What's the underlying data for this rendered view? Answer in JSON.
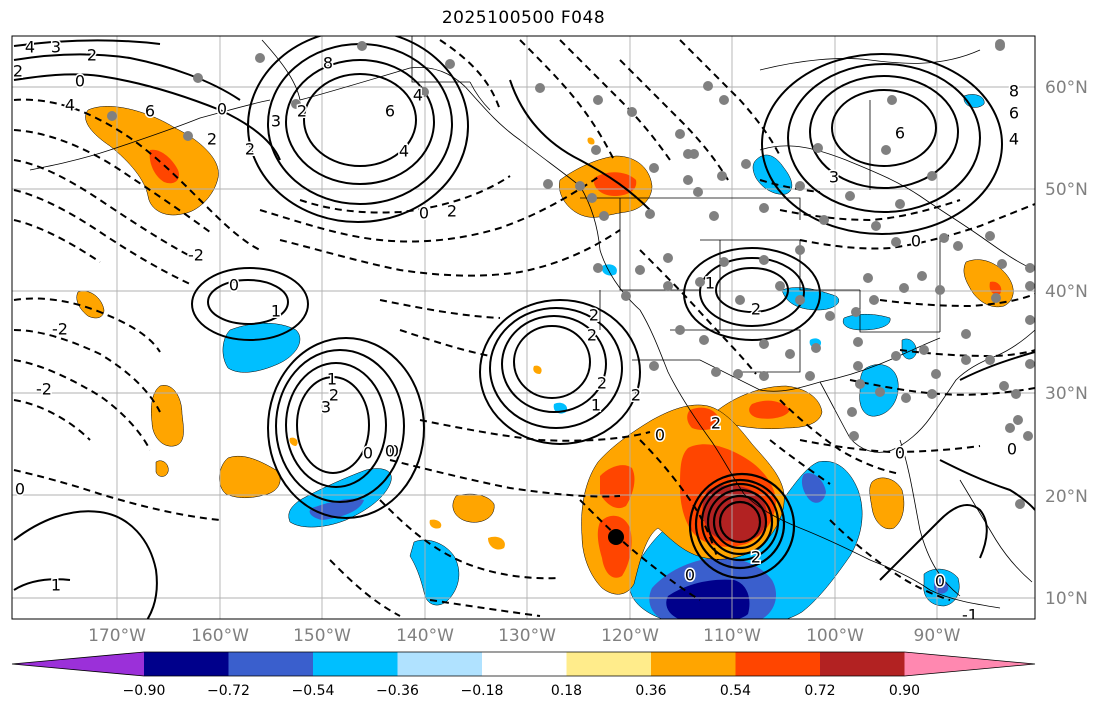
{
  "title": "2025100500 F048",
  "map": {
    "longitude_labels": [
      "170°W",
      "160°W",
      "150°W",
      "140°W",
      "130°W",
      "120°W",
      "110°W",
      "100°W",
      "90°W"
    ],
    "latitude_labels": [
      "60°N",
      "50°N",
      "40°N",
      "30°N",
      "20°N",
      "10°N"
    ],
    "contour_labels": [
      {
        "text": "4"
      },
      {
        "text": "3"
      },
      {
        "text": "2"
      },
      {
        "text": "2"
      },
      {
        "text": "0"
      },
      {
        "text": "4"
      },
      {
        "text": "6"
      },
      {
        "text": "2"
      },
      {
        "text": "2"
      },
      {
        "text": "0"
      },
      {
        "text": "-2"
      },
      {
        "text": "-2"
      },
      {
        "text": "-2"
      },
      {
        "text": "0"
      },
      {
        "text": "1"
      },
      {
        "text": "3"
      },
      {
        "text": "8"
      },
      {
        "text": "6"
      },
      {
        "text": "4"
      },
      {
        "text": "2"
      },
      {
        "text": "0"
      },
      {
        "text": "2"
      },
      {
        "text": "0"
      },
      {
        "text": "1"
      },
      {
        "text": "2"
      },
      {
        "text": "2"
      },
      {
        "text": "2"
      },
      {
        "text": "2"
      },
      {
        "text": "0"
      },
      {
        "text": "0"
      },
      {
        "text": "3"
      },
      {
        "text": "4"
      },
      {
        "text": "1"
      },
      {
        "text": "2"
      },
      {
        "text": "2"
      },
      {
        "text": "0"
      },
      {
        "text": "2"
      },
      {
        "text": "0"
      },
      {
        "text": "8"
      },
      {
        "text": "6"
      },
      {
        "text": "4"
      },
      {
        "text": "6"
      },
      {
        "text": "3"
      },
      {
        "text": "0"
      },
      {
        "text": "0"
      },
      {
        "text": "2"
      },
      {
        "text": "-1"
      },
      {
        "text": "0"
      },
      {
        "text": "0"
      },
      {
        "text": "1"
      },
      {
        "text": "0"
      },
      {
        "text": "1"
      }
    ]
  },
  "colorbar": {
    "colors": [
      "#9b30d9",
      "#00008b",
      "#3a5fcd",
      "#00bfff",
      "#b0e2ff",
      "#ffffff",
      "#ffec8b",
      "#ffa500",
      "#ff4500",
      "#b22222",
      "#ff88b0"
    ],
    "ticks": [
      "−0.90",
      "−0.72",
      "−0.54",
      "−0.36",
      "−0.18",
      "0.18",
      "0.36",
      "0.54",
      "0.72",
      "0.90"
    ]
  }
}
